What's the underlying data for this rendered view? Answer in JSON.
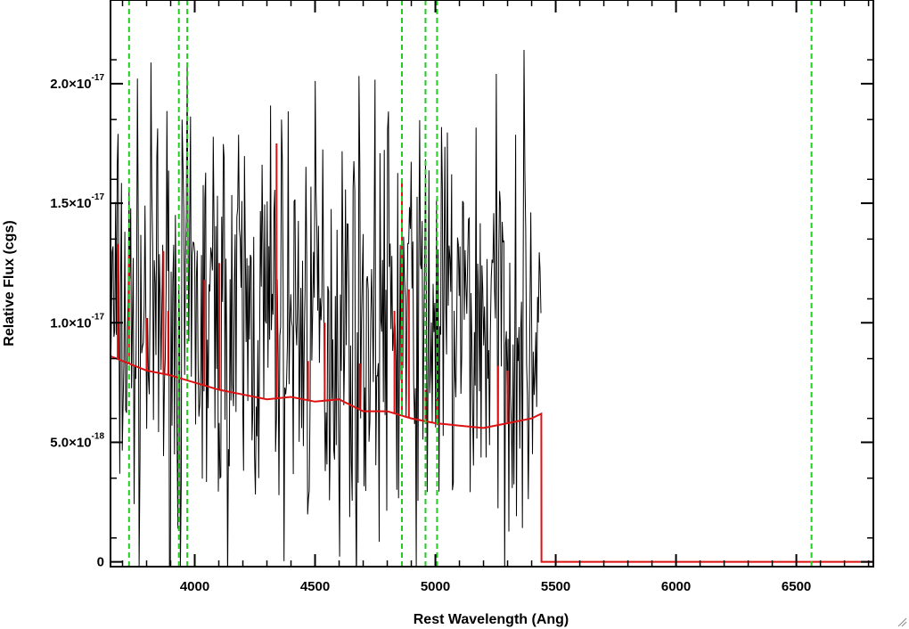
{
  "chart_data": {
    "type": "line",
    "title": "",
    "xlabel": "Rest Wavelength (Ang)",
    "ylabel": "Relative Flux (cgs)",
    "xlim": [
      3650,
      6820
    ],
    "ylim": [
      -2e-19,
      2.35e-17
    ],
    "x_ticks": [
      4000,
      4500,
      5000,
      5500,
      6000,
      6500
    ],
    "x_tick_labels": [
      "4000",
      "4500",
      "5000",
      "5500",
      "6000",
      "6500"
    ],
    "y_ticks": [
      {
        "value": 0,
        "mantissa": "0",
        "exponent": ""
      },
      {
        "value": 5e-18,
        "mantissa": "5.0×10",
        "exponent": "-18"
      },
      {
        "value": 1e-17,
        "mantissa": "1.0×10",
        "exponent": "-17"
      },
      {
        "value": 1.5e-17,
        "mantissa": "1.5×10",
        "exponent": "-17"
      },
      {
        "value": 2e-17,
        "mantissa": "2.0×10",
        "exponent": "-17"
      }
    ],
    "grid": false,
    "legend": "none",
    "colors": {
      "observed": "#000000",
      "model": "#dd1111",
      "lines": "#22cc22"
    },
    "line_markers": [
      3727,
      3934,
      3969,
      4861,
      4959,
      5007,
      6563
    ],
    "model_continuum": [
      {
        "x": 3650,
        "y": 8.6e-18
      },
      {
        "x": 3700,
        "y": 8.4e-18
      },
      {
        "x": 3800,
        "y": 8e-18
      },
      {
        "x": 3900,
        "y": 7.8e-18
      },
      {
        "x": 4000,
        "y": 7.5e-18
      },
      {
        "x": 4100,
        "y": 7.2e-18
      },
      {
        "x": 4200,
        "y": 7e-18
      },
      {
        "x": 4300,
        "y": 6.8e-18
      },
      {
        "x": 4400,
        "y": 6.9e-18
      },
      {
        "x": 4500,
        "y": 6.7e-18
      },
      {
        "x": 4600,
        "y": 6.8e-18
      },
      {
        "x": 4700,
        "y": 6.3e-18
      },
      {
        "x": 4800,
        "y": 6.3e-18
      },
      {
        "x": 4900,
        "y": 6e-18
      },
      {
        "x": 5000,
        "y": 5.8e-18
      },
      {
        "x": 5100,
        "y": 5.7e-18
      },
      {
        "x": 5200,
        "y": 5.6e-18
      },
      {
        "x": 5300,
        "y": 5.8e-18
      },
      {
        "x": 5400,
        "y": 6e-18
      },
      {
        "x": 5440,
        "y": 6.2e-18
      },
      {
        "x": 5441,
        "y": 0.0
      },
      {
        "x": 6820,
        "y": 0.0
      }
    ],
    "model_spikes": [
      {
        "x": 3680,
        "y": 1.33e-17
      },
      {
        "x": 3727,
        "y": 1.28e-17
      },
      {
        "x": 3800,
        "y": 1.02e-17
      },
      {
        "x": 3870,
        "y": 1.3e-17
      },
      {
        "x": 3890,
        "y": 1.05e-17
      },
      {
        "x": 4040,
        "y": 1.18e-17
      },
      {
        "x": 4102,
        "y": 1.25e-17
      },
      {
        "x": 4340,
        "y": 1.75e-17
      },
      {
        "x": 4471,
        "y": 8.4e-18
      },
      {
        "x": 4540,
        "y": 1e-17
      },
      {
        "x": 4686,
        "y": 8.3e-18
      },
      {
        "x": 4830,
        "y": 1.05e-17
      },
      {
        "x": 4861,
        "y": 1.6e-17
      },
      {
        "x": 4890,
        "y": 1.14e-17
      },
      {
        "x": 4959,
        "y": 7.2e-18
      },
      {
        "x": 5007,
        "y": 6.8e-18
      },
      {
        "x": 5260,
        "y": 8.2e-18
      },
      {
        "x": 5300,
        "y": 8e-18
      }
    ],
    "observed": {
      "x_start": 3650,
      "x_end": 5440,
      "step": 3.5,
      "median": 1e-17,
      "scatter": 5.5e-18,
      "seed": 7
    }
  }
}
